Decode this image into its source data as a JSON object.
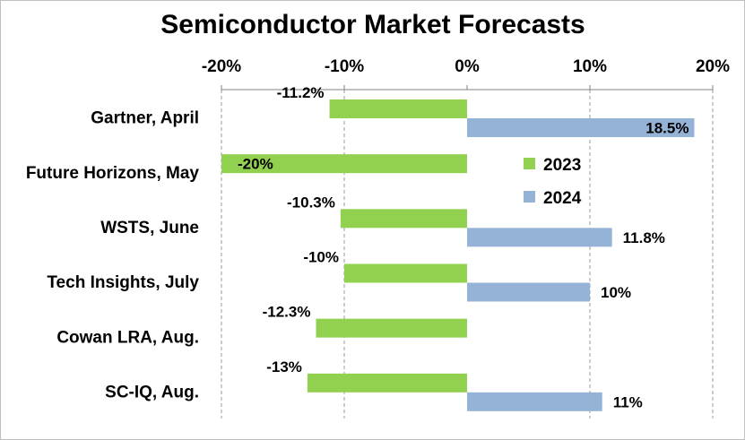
{
  "chart_data": {
    "type": "bar",
    "orientation": "horizontal",
    "title": "Semiconductor Market Forecasts",
    "xlim": [
      -0.2,
      0.2
    ],
    "x_ticks": [
      -0.2,
      -0.1,
      0,
      0.1,
      0.2
    ],
    "x_tick_labels": [
      "-20%",
      "-10%",
      "0%",
      "10%",
      "20%"
    ],
    "x_axis_position": "top",
    "grid": "vertical dashed",
    "legend_position": "right, inside plot",
    "categories": [
      "Gartner, April",
      "Future Horizons, May",
      "WSTS, June",
      "Tech Insights, July",
      "Cowan LRA, Aug.",
      "SC-IQ, Aug."
    ],
    "series": [
      {
        "name": "2023",
        "color": "#92d050",
        "values": [
          -0.112,
          -0.2,
          -0.103,
          -0.1,
          -0.123,
          -0.13
        ],
        "labels": [
          "-11.2%",
          "-20%",
          "-10.3%",
          "-10%",
          "-12.3%",
          "-13%"
        ]
      },
      {
        "name": "2024",
        "color": "#95b3d7",
        "values": [
          0.185,
          null,
          0.118,
          0.1,
          null,
          0.11
        ],
        "labels": [
          "18.5%",
          null,
          "11.8%",
          "10%",
          null,
          "11%"
        ]
      }
    ]
  }
}
